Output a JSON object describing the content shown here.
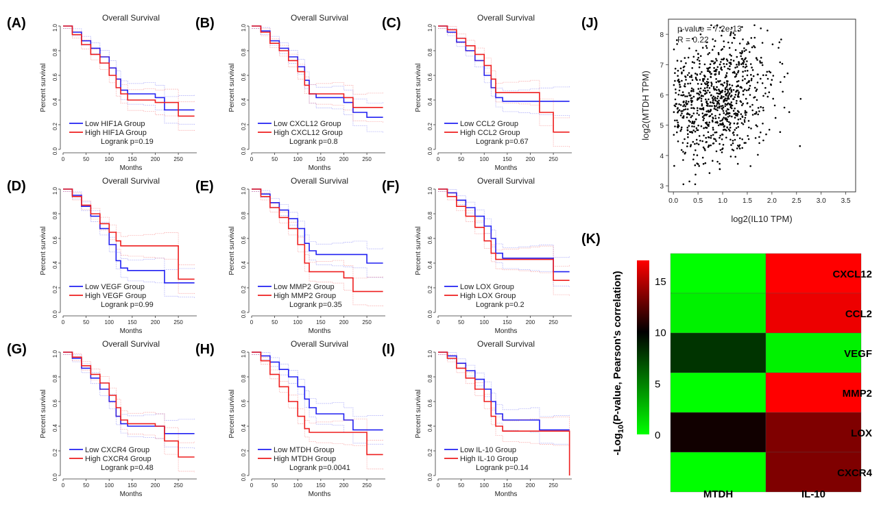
{
  "colors": {
    "low": "#1f1ff2",
    "high": "#ee1c1c",
    "green": "#00ff00",
    "red": "#ff0000",
    "black": "#000000"
  },
  "chart_data": [
    {
      "panel": "(A)",
      "type": "line",
      "title": "Overall Survival",
      "xlabel": "Months",
      "ylabel": "Percent survival",
      "xlim": [
        0,
        290
      ],
      "ylim": [
        0,
        1.0
      ],
      "xticks": [
        "0",
        "50",
        "100",
        "150",
        "200",
        "250"
      ],
      "yticks": [
        "0.0",
        "0.2",
        "0.4",
        "0.6",
        "0.8",
        "1.0"
      ],
      "legend": [
        "Low HIF1A Group",
        "High HIF1A Group"
      ],
      "annotation": "Logrank p=0.19",
      "series": [
        {
          "name": "Low HIF1A Group",
          "x": [
            0,
            20,
            40,
            60,
            80,
            100,
            115,
            125,
            140,
            175,
            200,
            220,
            250,
            285
          ],
          "y": [
            1.0,
            0.95,
            0.88,
            0.82,
            0.75,
            0.66,
            0.57,
            0.48,
            0.45,
            0.45,
            0.42,
            0.32,
            0.32,
            0.32
          ]
        },
        {
          "name": "High HIF1A Group",
          "x": [
            0,
            20,
            40,
            60,
            80,
            100,
            115,
            125,
            140,
            175,
            200,
            220,
            250,
            285
          ],
          "y": [
            1.0,
            0.93,
            0.85,
            0.77,
            0.7,
            0.6,
            0.5,
            0.45,
            0.4,
            0.4,
            0.38,
            0.38,
            0.27,
            0.27
          ]
        }
      ]
    },
    {
      "panel": "(B)",
      "type": "line",
      "title": "Overall Survival",
      "xlabel": "Months",
      "ylabel": "Percent survival",
      "xlim": [
        0,
        290
      ],
      "ylim": [
        0,
        1.0
      ],
      "xticks": [
        "0",
        "50",
        "100",
        "150",
        "200",
        "250"
      ],
      "yticks": [
        "0.0",
        "0.2",
        "0.4",
        "0.6",
        "0.8",
        "1.0"
      ],
      "legend": [
        "Low CXCL12 Group",
        "High CXCL12 Group"
      ],
      "annotation": "Logrank p=0.8",
      "series": [
        {
          "name": "Low CXCL12 Group",
          "x": [
            0,
            20,
            40,
            60,
            80,
            100,
            115,
            125,
            140,
            175,
            200,
            220,
            250,
            285
          ],
          "y": [
            1.0,
            0.96,
            0.88,
            0.82,
            0.75,
            0.67,
            0.56,
            0.45,
            0.42,
            0.42,
            0.38,
            0.3,
            0.26,
            0.26
          ]
        },
        {
          "name": "High CXCL12 Group",
          "x": [
            0,
            20,
            40,
            60,
            80,
            100,
            115,
            125,
            140,
            175,
            200,
            220,
            250,
            285
          ],
          "y": [
            1.0,
            0.95,
            0.86,
            0.8,
            0.72,
            0.63,
            0.52,
            0.45,
            0.45,
            0.45,
            0.42,
            0.34,
            0.34,
            0.34
          ]
        }
      ]
    },
    {
      "panel": "(C)",
      "type": "line",
      "title": "Overall Survival",
      "xlabel": "Months",
      "ylabel": "Percent survival",
      "xlim": [
        0,
        290
      ],
      "ylim": [
        0,
        1.0
      ],
      "xticks": [
        "0",
        "50",
        "100",
        "150",
        "200",
        "250"
      ],
      "yticks": [
        "0.0",
        "0.2",
        "0.4",
        "0.6",
        "0.8",
        "1.0"
      ],
      "legend": [
        "Low CCL2 Group",
        "High CCL2 Group"
      ],
      "annotation": "Logrank p=0.67",
      "series": [
        {
          "name": "Low CCL2 Group",
          "x": [
            0,
            20,
            40,
            60,
            80,
            100,
            115,
            125,
            140,
            175,
            200,
            220,
            250,
            285
          ],
          "y": [
            1.0,
            0.95,
            0.87,
            0.8,
            0.72,
            0.6,
            0.5,
            0.42,
            0.39,
            0.39,
            0.39,
            0.39,
            0.39,
            0.39
          ]
        },
        {
          "name": "High CCL2 Group",
          "x": [
            0,
            20,
            40,
            60,
            80,
            100,
            115,
            125,
            140,
            175,
            200,
            220,
            250,
            285
          ],
          "y": [
            1.0,
            0.97,
            0.9,
            0.84,
            0.77,
            0.68,
            0.57,
            0.46,
            0.46,
            0.46,
            0.46,
            0.3,
            0.14,
            0.14
          ]
        }
      ]
    },
    {
      "panel": "(D)",
      "type": "line",
      "title": "Overall Survival",
      "xlabel": "Months",
      "ylabel": "Percent survival",
      "xlim": [
        0,
        290
      ],
      "ylim": [
        0,
        1.0
      ],
      "xticks": [
        "0",
        "50",
        "100",
        "150",
        "200",
        "250"
      ],
      "yticks": [
        "0.0",
        "0.2",
        "0.4",
        "0.6",
        "0.8",
        "1.0"
      ],
      "legend": [
        "Low VEGF Group",
        "High VEGF Group"
      ],
      "annotation": "Logrank p=0.99",
      "series": [
        {
          "name": "Low VEGF Group",
          "x": [
            0,
            20,
            40,
            60,
            80,
            100,
            115,
            125,
            140,
            175,
            200,
            220,
            250,
            285
          ],
          "y": [
            1.0,
            0.95,
            0.86,
            0.78,
            0.68,
            0.55,
            0.42,
            0.36,
            0.34,
            0.34,
            0.34,
            0.24,
            0.24,
            0.24
          ]
        },
        {
          "name": "High VEGF Group",
          "x": [
            0,
            20,
            40,
            60,
            80,
            100,
            115,
            125,
            140,
            175,
            200,
            220,
            250,
            285
          ],
          "y": [
            1.0,
            0.94,
            0.87,
            0.8,
            0.72,
            0.65,
            0.58,
            0.54,
            0.54,
            0.54,
            0.54,
            0.54,
            0.27,
            0.27
          ]
        }
      ]
    },
    {
      "panel": "(E)",
      "type": "line",
      "title": "Overall Survival",
      "xlabel": "Months",
      "ylabel": "Percent survival",
      "xlim": [
        0,
        290
      ],
      "ylim": [
        0,
        1.0
      ],
      "xticks": [
        "0",
        "50",
        "100",
        "150",
        "200",
        "250"
      ],
      "yticks": [
        "0.0",
        "0.2",
        "0.4",
        "0.6",
        "0.8",
        "1.0"
      ],
      "legend": [
        "Low MMP2 Group",
        "High MMP2 Group"
      ],
      "annotation": "Logrank p=0.35",
      "series": [
        {
          "name": "Low MMP2 Group",
          "x": [
            0,
            20,
            40,
            60,
            80,
            100,
            115,
            125,
            140,
            175,
            200,
            220,
            250,
            285
          ],
          "y": [
            1.0,
            0.96,
            0.89,
            0.83,
            0.76,
            0.68,
            0.56,
            0.5,
            0.47,
            0.47,
            0.47,
            0.47,
            0.4,
            0.4
          ]
        },
        {
          "name": "High MMP2 Group",
          "x": [
            0,
            20,
            40,
            60,
            80,
            100,
            115,
            125,
            140,
            175,
            200,
            220,
            250,
            285
          ],
          "y": [
            1.0,
            0.94,
            0.85,
            0.77,
            0.68,
            0.55,
            0.4,
            0.33,
            0.33,
            0.33,
            0.28,
            0.17,
            0.17,
            0.17
          ]
        }
      ]
    },
    {
      "panel": "(F)",
      "type": "line",
      "title": "Overall Survival",
      "xlabel": "Months",
      "ylabel": "Percent survival",
      "xlim": [
        0,
        290
      ],
      "ylim": [
        0,
        1.0
      ],
      "xticks": [
        "0",
        "50",
        "100",
        "150",
        "200",
        "250"
      ],
      "yticks": [
        "0.0",
        "0.2",
        "0.4",
        "0.6",
        "0.8",
        "1.0"
      ],
      "legend": [
        "Low LOX Group",
        "High LOX Group"
      ],
      "annotation": "Logrank p=0.2",
      "series": [
        {
          "name": "Low LOX Group",
          "x": [
            0,
            20,
            40,
            60,
            80,
            100,
            115,
            125,
            140,
            175,
            200,
            220,
            250,
            285
          ],
          "y": [
            1.0,
            0.97,
            0.91,
            0.85,
            0.78,
            0.7,
            0.6,
            0.48,
            0.44,
            0.44,
            0.44,
            0.44,
            0.33,
            0.33
          ]
        },
        {
          "name": "High LOX Group",
          "x": [
            0,
            20,
            40,
            60,
            80,
            100,
            115,
            125,
            140,
            175,
            200,
            220,
            250,
            285
          ],
          "y": [
            1.0,
            0.94,
            0.86,
            0.78,
            0.69,
            0.58,
            0.48,
            0.43,
            0.43,
            0.43,
            0.43,
            0.43,
            0.26,
            0.26
          ]
        }
      ]
    },
    {
      "panel": "(G)",
      "type": "line",
      "title": "Overall Survival",
      "xlabel": "Months",
      "ylabel": "Percent survival",
      "xlim": [
        0,
        290
      ],
      "ylim": [
        0,
        1.0
      ],
      "xticks": [
        "0",
        "50",
        "100",
        "150",
        "200",
        "250"
      ],
      "yticks": [
        "0.0",
        "0.2",
        "0.4",
        "0.6",
        "0.8",
        "1.0"
      ],
      "legend": [
        "Low CXCR4 Group",
        "High CXCR4 Group"
      ],
      "annotation": "Logrank p=0.48",
      "series": [
        {
          "name": "Low CXCR4 Group",
          "x": [
            0,
            20,
            40,
            60,
            80,
            100,
            115,
            125,
            140,
            175,
            200,
            220,
            250,
            285
          ],
          "y": [
            1.0,
            0.95,
            0.87,
            0.79,
            0.7,
            0.6,
            0.48,
            0.42,
            0.4,
            0.4,
            0.4,
            0.34,
            0.34,
            0.34
          ]
        },
        {
          "name": "High CXCR4 Group",
          "x": [
            0,
            20,
            40,
            60,
            80,
            100,
            115,
            125,
            140,
            175,
            200,
            220,
            250,
            285
          ],
          "y": [
            1.0,
            0.96,
            0.89,
            0.82,
            0.75,
            0.65,
            0.55,
            0.45,
            0.42,
            0.42,
            0.4,
            0.28,
            0.15,
            0.15
          ]
        }
      ]
    },
    {
      "panel": "(H)",
      "type": "line",
      "title": "Overall Survival",
      "xlabel": "Months",
      "ylabel": "Percent survival",
      "xlim": [
        0,
        290
      ],
      "ylim": [
        0,
        1.0
      ],
      "xticks": [
        "0",
        "50",
        "100",
        "150",
        "200",
        "250"
      ],
      "yticks": [
        "0.0",
        "0.2",
        "0.4",
        "0.6",
        "0.8",
        "1.0"
      ],
      "legend": [
        "Low MTDH Group",
        "High MTDH Group"
      ],
      "annotation": "Logrank p=0.0041",
      "series": [
        {
          "name": "Low MTDH Group",
          "x": [
            0,
            20,
            40,
            60,
            80,
            100,
            115,
            125,
            140,
            175,
            200,
            220,
            250,
            285
          ],
          "y": [
            1.0,
            0.97,
            0.92,
            0.86,
            0.8,
            0.72,
            0.62,
            0.55,
            0.5,
            0.5,
            0.45,
            0.37,
            0.37,
            0.37
          ]
        },
        {
          "name": "High MTDH Group",
          "x": [
            0,
            20,
            40,
            60,
            80,
            100,
            115,
            125,
            140,
            175,
            200,
            220,
            250,
            285
          ],
          "y": [
            1.0,
            0.93,
            0.82,
            0.72,
            0.6,
            0.48,
            0.38,
            0.35,
            0.35,
            0.35,
            0.35,
            0.35,
            0.17,
            0.17
          ]
        }
      ]
    },
    {
      "panel": "(I)",
      "type": "line",
      "title": "Overall Survival",
      "xlabel": "Months",
      "ylabel": "Percent survival",
      "xlim": [
        0,
        290
      ],
      "ylim": [
        0,
        1.0
      ],
      "xticks": [
        "0",
        "50",
        "100",
        "150",
        "200",
        "250"
      ],
      "yticks": [
        "0.0",
        "0.2",
        "0.4",
        "0.6",
        "0.8",
        "1.0"
      ],
      "legend": [
        "Low IL-10 Group",
        "High IL-10 Group"
      ],
      "annotation": "Logrank p=0.14",
      "series": [
        {
          "name": "Low IL-10 Group",
          "x": [
            0,
            20,
            40,
            60,
            80,
            100,
            115,
            125,
            140,
            175,
            200,
            220,
            250,
            285
          ],
          "y": [
            1.0,
            0.97,
            0.91,
            0.85,
            0.78,
            0.7,
            0.6,
            0.5,
            0.45,
            0.45,
            0.45,
            0.37,
            0.37,
            0.37
          ]
        },
        {
          "name": "High IL-10 Group",
          "x": [
            0,
            20,
            40,
            60,
            80,
            100,
            115,
            125,
            140,
            175,
            200,
            220,
            250,
            285
          ],
          "y": [
            1.0,
            0.95,
            0.87,
            0.79,
            0.7,
            0.6,
            0.48,
            0.4,
            0.36,
            0.36,
            0.36,
            0.36,
            0.36,
            0.0
          ]
        }
      ]
    },
    {
      "panel": "(J)",
      "type": "scatter",
      "xlabel": "log2(IL10 TPM)",
      "ylabel": "log2(MTDH TPM)",
      "xlim": [
        -0.1,
        3.7
      ],
      "ylim": [
        2.8,
        8.5
      ],
      "xticks": [
        "0.0",
        "0.5",
        "1.0",
        "1.5",
        "2.0",
        "2.5",
        "3.0",
        "3.5"
      ],
      "yticks": [
        "3",
        "4",
        "5",
        "6",
        "7",
        "8"
      ],
      "annotations": [
        "p-value = 7.2e-13",
        "R = 0.22"
      ],
      "points": {
        "n": 900,
        "x_mean": 0.95,
        "y_mean": 5.85,
        "correlation": 0.22
      }
    },
    {
      "panel": "(K)",
      "type": "heatmap",
      "columns": [
        "MTDH",
        "IL-10"
      ],
      "rows": [
        "CXCL12",
        "CCL2",
        "VEGF",
        "MMP2",
        "LOX",
        "CXCR4"
      ],
      "values": [
        [
          0,
          17
        ],
        [
          0.5,
          16.5
        ],
        [
          8,
          0.5
        ],
        [
          0,
          17
        ],
        [
          10.5,
          13.5
        ],
        [
          0,
          13.5
        ]
      ],
      "colorbar": {
        "min": 0,
        "max": 17,
        "ticks": [
          "15",
          "10",
          "5",
          "0"
        ],
        "colors": [
          "#00ff00",
          "#000000",
          "#ff0000"
        ]
      },
      "colorbar_title": "-Log10(P-value, Pearson's correlation)"
    }
  ]
}
